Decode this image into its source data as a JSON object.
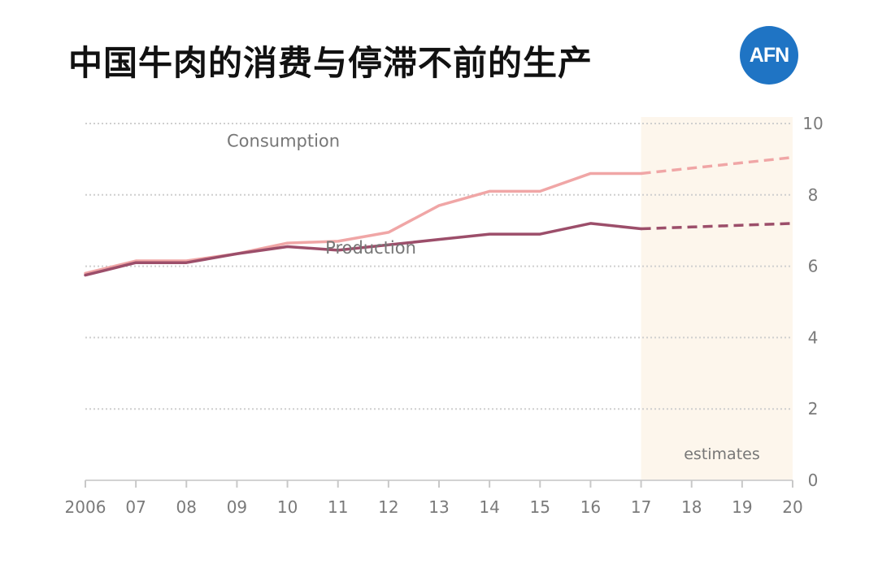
{
  "title": "中国牛肉的消费与停滞不前的生产",
  "logo": {
    "text": "AFN",
    "color": "#1f74c4"
  },
  "chart_data": {
    "type": "line",
    "x": [
      2006,
      2007,
      2008,
      2009,
      2010,
      2011,
      2012,
      2013,
      2014,
      2015,
      2016,
      2017,
      2018,
      2019,
      2020
    ],
    "x_tick_labels": [
      "2006",
      "07",
      "08",
      "09",
      "10",
      "11",
      "12",
      "13",
      "14",
      "15",
      "16",
      "17",
      "18",
      "19",
      "20"
    ],
    "xlim": [
      2006,
      2020
    ],
    "ylim": [
      0,
      10
    ],
    "y_ticks": [
      0,
      2,
      4,
      6,
      8,
      10
    ],
    "y_axis_side": "right",
    "grid": "dotted horizontal",
    "estimate_start": 2017,
    "estimate_label": "estimates",
    "series": [
      {
        "name": "Consumption",
        "color": "#f0a6a6",
        "values": [
          5.8,
          6.15,
          6.15,
          6.35,
          6.65,
          6.7,
          6.95,
          7.7,
          8.1,
          8.1,
          8.6,
          8.6,
          8.75,
          8.9,
          9.05
        ]
      },
      {
        "name": "Production",
        "color": "#9c4e6a",
        "values": [
          5.75,
          6.1,
          6.1,
          6.35,
          6.55,
          6.45,
          6.6,
          6.75,
          6.9,
          6.9,
          7.2,
          7.05,
          7.1,
          7.15,
          7.2
        ]
      }
    ]
  }
}
